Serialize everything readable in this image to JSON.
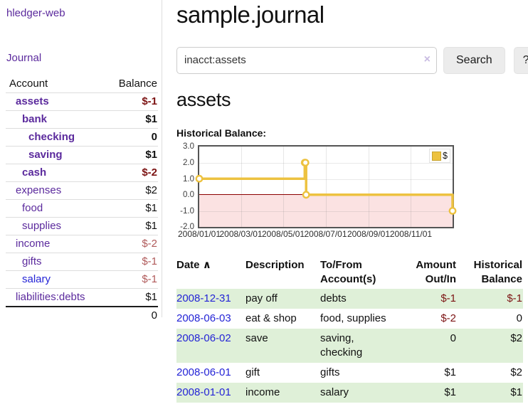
{
  "app": {
    "title": "hledger-web"
  },
  "colors": {
    "accent_purple": "#5b2a9d",
    "link_blue": "#2424d6",
    "negative": "#7c1313",
    "negative_muted": "#b05a5a",
    "row_stripe_green": "#dff0d8",
    "chart_line": "#edc240",
    "chart_negative_fill": "#fbe2e2",
    "chart_zero_line": "#8b0000"
  },
  "sidebar": {
    "journal_link": "Journal",
    "accounts_table": {
      "headers": {
        "account": "Account",
        "balance": "Balance"
      },
      "rows": [
        {
          "name": "assets",
          "depth": 1,
          "bold": true,
          "balance": "$-1",
          "bal_neg": true
        },
        {
          "name": "bank",
          "depth": 2,
          "bold": true,
          "balance": "$1"
        },
        {
          "name": "checking",
          "depth": 3,
          "bold": true,
          "balance": "0"
        },
        {
          "name": "saving",
          "depth": 3,
          "bold": true,
          "balance": "$1"
        },
        {
          "name": "cash",
          "depth": 2,
          "bold": true,
          "balance": "$-2",
          "bal_neg": true
        },
        {
          "name": "expenses",
          "depth": 1,
          "bold": false,
          "balance": "$2"
        },
        {
          "name": "food",
          "depth": 2,
          "bold": false,
          "balance": "$1"
        },
        {
          "name": "supplies",
          "depth": 2,
          "bold": false,
          "balance": "$1"
        },
        {
          "name": "income",
          "depth": 1,
          "bold": false,
          "balance": "$-2",
          "bal_muted": true
        },
        {
          "name": "gifts",
          "depth": 2,
          "bold": false,
          "balance": "$-1",
          "bal_muted": true
        },
        {
          "name": "salary",
          "depth": 2,
          "bold": false,
          "blue": true,
          "balance": "$-1",
          "bal_muted": true
        },
        {
          "name": "liabilities:debts",
          "depth": 1,
          "bold": false,
          "balance": "$1"
        }
      ],
      "total": "0"
    }
  },
  "main": {
    "title": "sample.journal",
    "search": {
      "value": "inacct:assets",
      "clear_icon": "×",
      "button_label": "Search",
      "help_label": "?"
    },
    "account_heading": "assets",
    "chart_label": "Historical Balance:"
  },
  "chart_data": {
    "type": "line",
    "title": "Historical Balance",
    "step": true,
    "series": [
      {
        "name": "$",
        "color": "#edc240",
        "points": [
          [
            "2008-01-01",
            1
          ],
          [
            "2008-06-01",
            2
          ],
          [
            "2008-06-02",
            2
          ],
          [
            "2008-06-03",
            0
          ],
          [
            "2008-12-31",
            -1
          ]
        ]
      }
    ],
    "x_range": [
      "2008-01-01",
      "2008-12-31"
    ],
    "ylim": [
      -2,
      3
    ],
    "y_ticks": [
      "3.0",
      "2.0",
      "1.0",
      "0.0",
      "-1.0",
      "-2.0"
    ],
    "x_tick_labels": [
      "2008/01/01",
      "2008/03/01",
      "2008/05/01",
      "2008/07/01",
      "2008/09/01",
      "2008/11/01"
    ],
    "legend": {
      "label": "$",
      "position": "top-right"
    },
    "grid": true
  },
  "register": {
    "headers": {
      "date": "Date",
      "sort_indicator": "∧",
      "description": "Description",
      "accounts": "To/From Account(s)",
      "amount": "Amount Out/In",
      "balance": "Historical Balance"
    },
    "rows": [
      {
        "date": "2008-12-31",
        "description": "pay off",
        "accounts": "debts",
        "amount": "$-1",
        "amount_neg": true,
        "balance": "$-1",
        "balance_neg": true,
        "stripe": true
      },
      {
        "date": "2008-06-03",
        "description": "eat & shop",
        "accounts": "food, supplies",
        "amount": "$-2",
        "amount_neg": true,
        "balance": "0",
        "stripe": false
      },
      {
        "date": "2008-06-02",
        "description": "save",
        "accounts": "saving, checking",
        "amount": "0",
        "balance": "$2",
        "stripe": true
      },
      {
        "date": "2008-06-01",
        "description": "gift",
        "accounts": "gifts",
        "amount": "$1",
        "balance": "$2",
        "stripe": false
      },
      {
        "date": "2008-01-01",
        "description": "income",
        "accounts": "salary",
        "amount": "$1",
        "balance": "$1",
        "stripe": true
      }
    ]
  }
}
